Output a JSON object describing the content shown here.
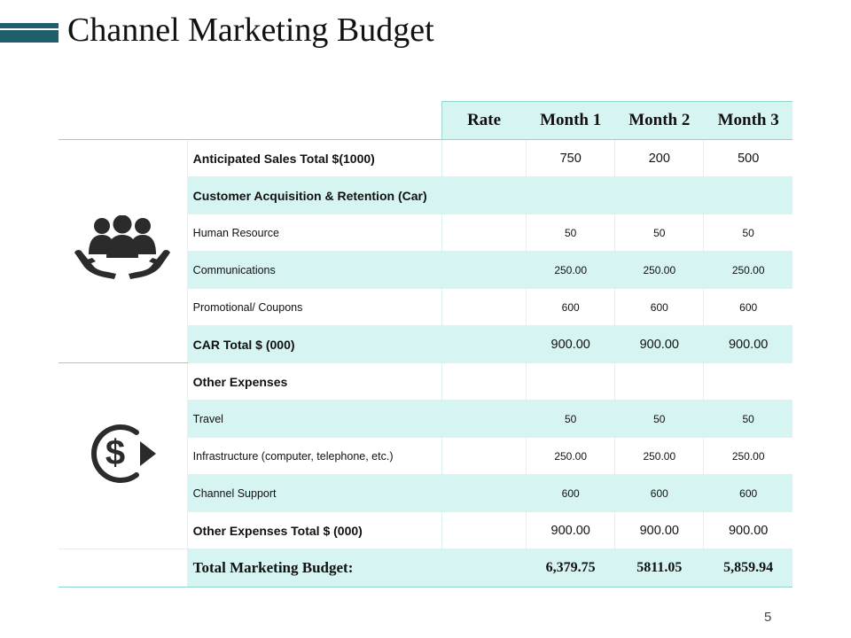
{
  "title": "Channel Marketing Budget",
  "page_number": "5",
  "colors": {
    "accent": "#1f5f6b",
    "row_fill": "#d6f4f1",
    "line": "#8fd3cb"
  },
  "icons": {
    "section1": "people-in-hands-icon",
    "section2": "dollar-refresh-icon"
  },
  "table": {
    "headers": {
      "rate": "Rate",
      "m1": "Month 1",
      "m2": "Month 2",
      "m3": "Month 3"
    },
    "rows": [
      {
        "label": "Anticipated Sales Total $(1000)",
        "rate": "",
        "m1": "750",
        "m2": "200",
        "m3": "500"
      },
      {
        "label": "Customer Acquisition & Retention (Car)",
        "rate": "",
        "m1": "",
        "m2": "",
        "m3": ""
      },
      {
        "label": "Human Resource",
        "rate": "",
        "m1": "50",
        "m2": "50",
        "m3": "50"
      },
      {
        "label": "Communications",
        "rate": "",
        "m1": "250.00",
        "m2": "250.00",
        "m3": "250.00"
      },
      {
        "label": "Promotional/ Coupons",
        "rate": "",
        "m1": "600",
        "m2": "600",
        "m3": "600"
      },
      {
        "label": "CAR Total $ (000)",
        "rate": "",
        "m1": "900.00",
        "m2": "900.00",
        "m3": "900.00"
      },
      {
        "label": "Other Expenses",
        "rate": "",
        "m1": "",
        "m2": "",
        "m3": ""
      },
      {
        "label": "Travel",
        "rate": "",
        "m1": "50",
        "m2": "50",
        "m3": "50"
      },
      {
        "label": "Infrastructure (computer, telephone, etc.)",
        "rate": "",
        "m1": "250.00",
        "m2": "250.00",
        "m3": "250.00"
      },
      {
        "label": "Channel Support",
        "rate": "",
        "m1": "600",
        "m2": "600",
        "m3": "600"
      },
      {
        "label": "Other Expenses Total $ (000)",
        "rate": "",
        "m1": "900.00",
        "m2": "900.00",
        "m3": "900.00"
      }
    ],
    "total": {
      "label": "Total Marketing Budget:",
      "rate": "",
      "m1": "6,379.75",
      "m2": "5811.05",
      "m3": "5,859.94"
    }
  }
}
